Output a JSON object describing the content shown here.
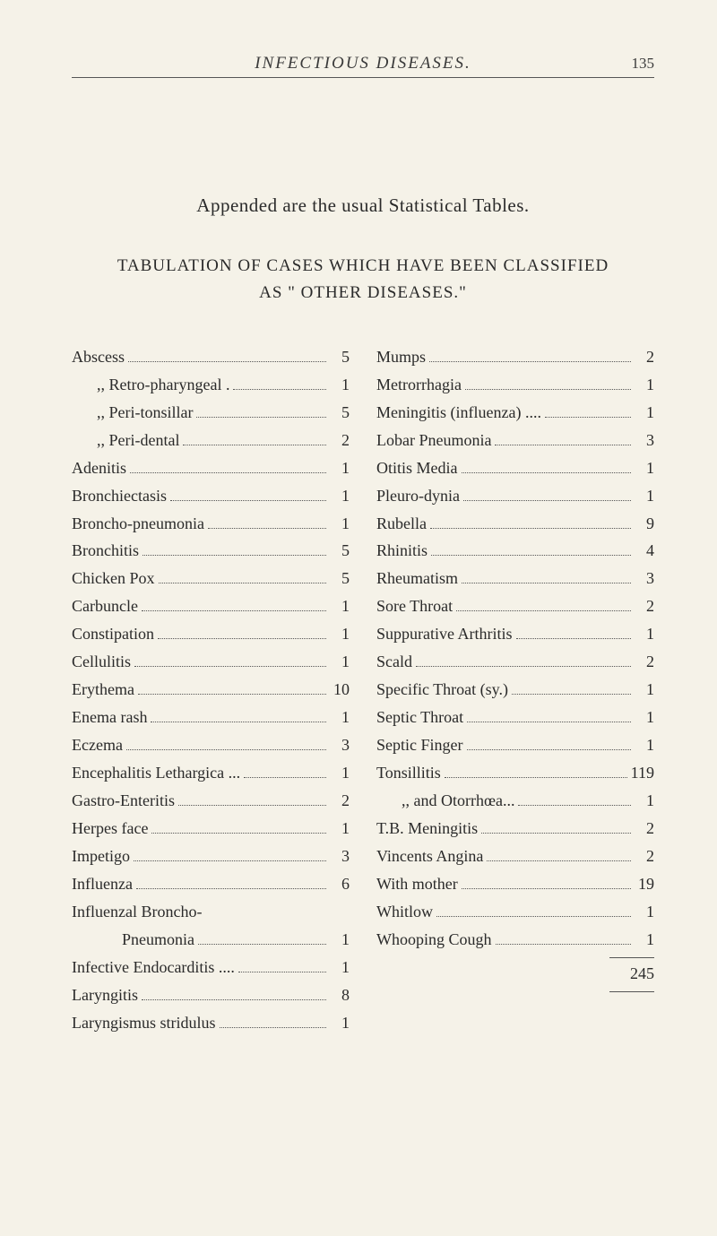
{
  "header": {
    "title": "INFECTIOUS DISEASES.",
    "page_number": "135"
  },
  "intro": "Appended are the usual Statistical Tables.",
  "section_title_line1": "TABULATION OF CASES WHICH HAVE BEEN CLASSIFIED",
  "section_title_line2": "AS \" OTHER DISEASES.\"",
  "left_column": [
    {
      "label": "Abscess",
      "value": "5",
      "indent": 0
    },
    {
      "label": ",,     Retro-pharyngeal .",
      "value": "1",
      "indent": 1
    },
    {
      "label": ",,     Peri-tonsillar",
      "value": "5",
      "indent": 1
    },
    {
      "label": ",,     Peri-dental",
      "value": "2",
      "indent": 1
    },
    {
      "label": "Adenitis",
      "value": "1",
      "indent": 0
    },
    {
      "label": "Bronchiectasis",
      "value": "1",
      "indent": 0
    },
    {
      "label": "Broncho-pneumonia",
      "value": "1",
      "indent": 0
    },
    {
      "label": "Bronchitis",
      "value": "5",
      "indent": 0
    },
    {
      "label": "Chicken Pox",
      "value": "5",
      "indent": 0
    },
    {
      "label": "Carbuncle",
      "value": "1",
      "indent": 0
    },
    {
      "label": "Constipation",
      "value": "1",
      "indent": 0
    },
    {
      "label": "Cellulitis",
      "value": "1",
      "indent": 0
    },
    {
      "label": "Erythema",
      "value": "10",
      "indent": 0
    },
    {
      "label": "Enema rash",
      "value": "1",
      "indent": 0
    },
    {
      "label": "Eczema",
      "value": "3",
      "indent": 0
    },
    {
      "label": "Encephalitis Lethargica ...",
      "value": "1",
      "indent": 0
    },
    {
      "label": "Gastro-Enteritis",
      "value": "2",
      "indent": 0
    },
    {
      "label": "Herpes face",
      "value": "1",
      "indent": 0
    },
    {
      "label": "Impetigo",
      "value": "3",
      "indent": 0
    },
    {
      "label": "Influenza",
      "value": "6",
      "indent": 0
    },
    {
      "label": "Influenzal Broncho-",
      "value": "",
      "indent": 0,
      "nodots": true
    },
    {
      "label": "Pneumonia",
      "value": "1",
      "indent": 2
    },
    {
      "label": "Infective Endocarditis ....",
      "value": "1",
      "indent": 0
    },
    {
      "label": "Laryngitis",
      "value": "8",
      "indent": 0
    },
    {
      "label": "Laryngismus stridulus",
      "value": "1",
      "indent": 0
    }
  ],
  "right_column": [
    {
      "label": "Mumps",
      "value": "2",
      "indent": 0
    },
    {
      "label": "Metrorrhagia",
      "value": "1",
      "indent": 0
    },
    {
      "label": "Meningitis (influenza)  ....",
      "value": "1",
      "indent": 0
    },
    {
      "label": "Lobar Pneumonia",
      "value": "3",
      "indent": 0
    },
    {
      "label": "Otitis Media",
      "value": "1",
      "indent": 0
    },
    {
      "label": "Pleuro-dynia",
      "value": "1",
      "indent": 0
    },
    {
      "label": "Rubella",
      "value": "9",
      "indent": 0
    },
    {
      "label": "Rhinitis",
      "value": "4",
      "indent": 0
    },
    {
      "label": "Rheumatism",
      "value": "3",
      "indent": 0
    },
    {
      "label": "Sore Throat",
      "value": "2",
      "indent": 0
    },
    {
      "label": "Suppurative Arthritis",
      "value": "1",
      "indent": 0
    },
    {
      "label": "Scald",
      "value": "2",
      "indent": 0
    },
    {
      "label": "Specific Throat (sy.)",
      "value": "1",
      "indent": 0
    },
    {
      "label": "Septic Throat",
      "value": "1",
      "indent": 0
    },
    {
      "label": "Septic Finger",
      "value": "1",
      "indent": 0
    },
    {
      "label": "Tonsillitis",
      "value": "119",
      "indent": 0
    },
    {
      "label": ",,     and Otorrhœa...",
      "value": "1",
      "indent": 1
    },
    {
      "label": "T.B. Meningitis",
      "value": "2",
      "indent": 0
    },
    {
      "label": "Vincents Angina",
      "value": "2",
      "indent": 0
    },
    {
      "label": "With mother",
      "value": "19",
      "indent": 0
    },
    {
      "label": "Whitlow",
      "value": "1",
      "indent": 0
    },
    {
      "label": "Whooping Cough",
      "value": "1",
      "indent": 0
    }
  ],
  "total": "245"
}
